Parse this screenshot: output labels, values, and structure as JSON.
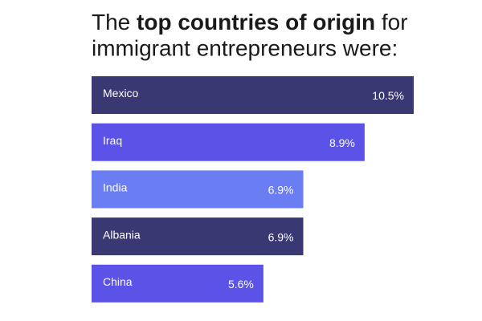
{
  "chart_data": {
    "type": "bar",
    "title": [
      {
        "text": "The "
      },
      {
        "text": "top countries of origin",
        "bold": true
      },
      {
        "text": " for"
      }
    ],
    "subtitle": "immigrant entrepreneurs were:",
    "categories": [
      "Mexico",
      "Iraq",
      "India",
      "Albania",
      "China"
    ],
    "values": [
      10.5,
      8.9,
      6.9,
      6.9,
      5.6
    ],
    "value_labels": [
      "10.5%",
      "8.9%",
      "6.9%",
      "6.9%",
      "5.6%"
    ],
    "colors": [
      "#393873",
      "#5b52e8",
      "#6b7df2",
      "#393873",
      "#5b52e8"
    ]
  }
}
